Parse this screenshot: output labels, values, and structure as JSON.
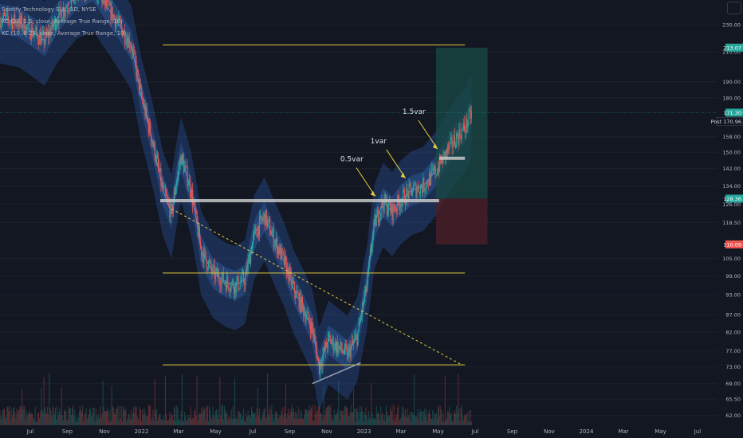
{
  "legend": {
    "symbol": "Spotify Technology S.A., 1D, NYSE",
    "ind1": "KC (20, 1.5, close, Average True Range, 10)",
    "ind2": "KC (10, 0.25, close, Average True Range, 10)"
  },
  "annotations": [
    "0.5var",
    "1var",
    "1.5var"
  ],
  "price_labels": {
    "target": "213.07",
    "last": "171.30",
    "post_tag": "Post",
    "post": "170.96",
    "entry": "128.36",
    "stop": "110.09"
  },
  "colors": {
    "bg": "#131722",
    "candle_up": "#26a69a",
    "candle_down": "#ef5350",
    "channel": "#2b5aa8",
    "level": "#e6cd3c",
    "zone": "#c7c7c7",
    "profit": "#1a4a45",
    "loss": "#4a1f28",
    "label_green": "#26a69a",
    "label_red": "#ef5350"
  },
  "chart_data": {
    "type": "candlestick",
    "y_scale": "log",
    "ylim": [
      60,
      250
    ],
    "y_ticks": [
      "230.00",
      "210.00",
      "190.00",
      "180.00",
      "158.00",
      "150.00",
      "142.00",
      "134.00",
      "126.00",
      "118.50",
      "105.00",
      "99.00",
      "93.00",
      "87.00",
      "82.00",
      "77.00",
      "73.00",
      "69.00",
      "65.50",
      "62.00"
    ],
    "x_ticks": [
      "Jul",
      "Sep",
      "Nov",
      "2022",
      "Mar",
      "May",
      "Jul",
      "Sep",
      "Nov",
      "2023",
      "Mar",
      "May",
      "Jul",
      "Sep",
      "Nov",
      "2024",
      "Mar",
      "May",
      "Jul"
    ],
    "x_range": [
      "2021-06-15",
      "2024-07-31"
    ],
    "close_path": [
      [
        "2021-06-15",
        235
      ],
      [
        "2021-07-15",
        232
      ],
      [
        "2021-08-05",
        225
      ],
      [
        "2021-08-25",
        218
      ],
      [
        "2021-09-15",
        236
      ],
      [
        "2021-10-15",
        255
      ],
      [
        "2021-11-10",
        262
      ],
      [
        "2021-11-25",
        250
      ],
      [
        "2021-12-15",
        235
      ],
      [
        "2022-01-10",
        215
      ],
      [
        "2022-01-25",
        182
      ],
      [
        "2022-02-15",
        152
      ],
      [
        "2022-03-01",
        132
      ],
      [
        "2022-03-15",
        122
      ],
      [
        "2022-03-30",
        148
      ],
      [
        "2022-04-15",
        132
      ],
      [
        "2022-05-01",
        108
      ],
      [
        "2022-05-20",
        100
      ],
      [
        "2022-06-10",
        97
      ],
      [
        "2022-06-25",
        96
      ],
      [
        "2022-07-10",
        98
      ],
      [
        "2022-07-25",
        114
      ],
      [
        "2022-08-10",
        121
      ],
      [
        "2022-08-25",
        112
      ],
      [
        "2022-09-10",
        104
      ],
      [
        "2022-09-25",
        95
      ],
      [
        "2022-10-10",
        89
      ],
      [
        "2022-10-25",
        83
      ],
      [
        "2022-11-05",
        73
      ],
      [
        "2022-11-20",
        80
      ],
      [
        "2022-12-05",
        78
      ],
      [
        "2022-12-20",
        76
      ],
      [
        "2023-01-05",
        81
      ],
      [
        "2023-01-20",
        96
      ],
      [
        "2023-02-01",
        118
      ],
      [
        "2023-02-15",
        127
      ],
      [
        "2023-03-01",
        123
      ],
      [
        "2023-03-15",
        128
      ],
      [
        "2023-04-01",
        132
      ],
      [
        "2023-04-20",
        134
      ],
      [
        "2023-05-10",
        141
      ],
      [
        "2023-05-25",
        149
      ],
      [
        "2023-06-10",
        157
      ],
      [
        "2023-06-25",
        163
      ],
      [
        "2023-07-06",
        171.3
      ]
    ],
    "levels": [
      {
        "price": 215,
        "from": "2022-03-01",
        "to": "2023-06-25"
      },
      {
        "price": 100,
        "from": "2022-03-01",
        "to": "2023-06-25"
      },
      {
        "price": 73.5,
        "from": "2022-03-01",
        "to": "2023-06-25"
      }
    ],
    "zones": [
      {
        "price": 127.5,
        "from": "2022-02-25",
        "to": "2023-05-15"
      },
      {
        "price": 147,
        "from": "2023-05-15",
        "to": "2023-06-25"
      }
    ],
    "trendline": {
      "from": [
        "2022-03-15",
        124
      ],
      "to": [
        "2023-06-20",
        73.5
      ]
    },
    "support_line": {
      "from": [
        "2022-10-25",
        69
      ],
      "to": [
        "2023-01-10",
        74
      ]
    },
    "position": {
      "entry": 128.36,
      "target": 213.07,
      "stop": 110.09,
      "from": "2023-05-10",
      "to": "2023-07-31"
    },
    "arrows": [
      {
        "label": "0.5var",
        "date": "2023-02-05",
        "price": 128
      },
      {
        "label": "1var",
        "date": "2023-03-25",
        "price": 136
      },
      {
        "label": "1.5var",
        "date": "2023-05-15",
        "price": 150
      }
    ]
  }
}
